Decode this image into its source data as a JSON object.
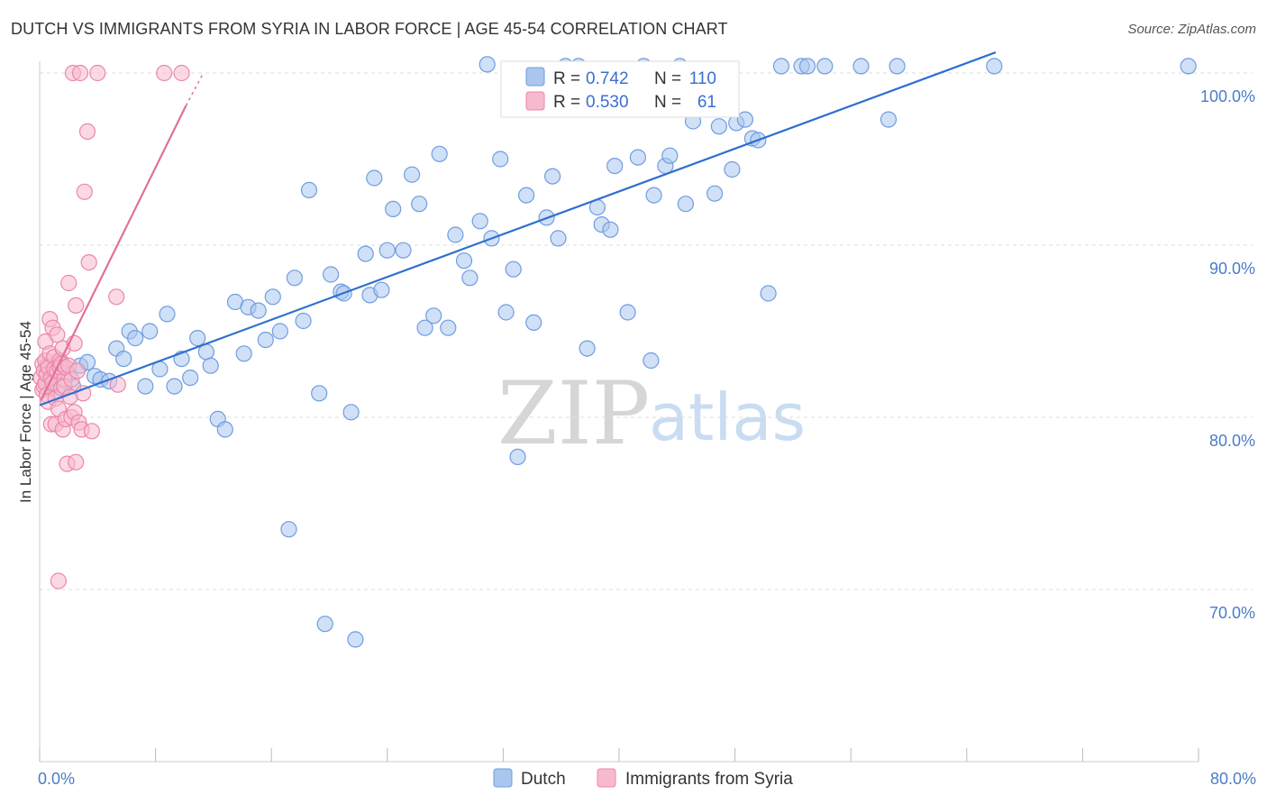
{
  "header": {
    "title": "DUTCH VS IMMIGRANTS FROM SYRIA IN LABOR FORCE | AGE 45-54 CORRELATION CHART",
    "source": "Source: ZipAtlas.com"
  },
  "watermark": {
    "zip": "ZIP",
    "atlas": "atlas"
  },
  "colors": {
    "dutch_fill": "#a9c6ee",
    "dutch_stroke": "#6f9de0",
    "dutch_line": "#2e6fd0",
    "syria_fill": "#f7b9ce",
    "syria_stroke": "#ec86a8",
    "syria_line": "#e0709b",
    "grid": "#dddddd",
    "axis_text": "#4a7cc9"
  },
  "legend": {
    "rows": [
      {
        "r_label": "R =",
        "r_value": "0.742",
        "n_label": "N =",
        "n_value": "110"
      },
      {
        "r_label": "R =",
        "r_value": "0.530",
        "n_label": "N =",
        "n_value": "61"
      }
    ]
  },
  "chart_data": {
    "type": "scatter",
    "title": "DUTCH VS IMMIGRANTS FROM SYRIA IN LABOR FORCE | AGE 45-54 CORRELATION CHART",
    "xlabel": "",
    "ylabel": "In Labor Force | Age 45-54",
    "xlim": [
      0,
      80
    ],
    "ylim": [
      60,
      102
    ],
    "x_tick_labels": [
      "0.0%",
      "80.0%"
    ],
    "y_ticks": [
      70,
      80,
      90,
      100
    ],
    "y_tick_labels": [
      "70.0%",
      "80.0%",
      "90.0%",
      "100.0%"
    ],
    "grid": true,
    "legend_position": "top-center",
    "series": [
      {
        "name": "Dutch",
        "color": "#a9c6ee",
        "R": 0.742,
        "N": 110,
        "trend": [
          [
            0.0,
            80.7
          ],
          [
            66.0,
            101.2
          ]
        ],
        "points": [
          [
            0.5,
            83.0
          ],
          [
            0.8,
            81.8
          ],
          [
            1.0,
            82.5
          ],
          [
            1.2,
            81.5
          ],
          [
            1.5,
            83.2
          ],
          [
            1.8,
            82.9
          ],
          [
            2.0,
            82.5
          ],
          [
            2.3,
            81.8
          ],
          [
            2.8,
            83.0
          ],
          [
            3.3,
            83.2
          ],
          [
            3.8,
            82.4
          ],
          [
            4.2,
            82.2
          ],
          [
            4.8,
            82.1
          ],
          [
            5.3,
            84.0
          ],
          [
            5.8,
            83.4
          ],
          [
            6.2,
            85.0
          ],
          [
            6.6,
            84.6
          ],
          [
            7.3,
            81.8
          ],
          [
            7.6,
            85.0
          ],
          [
            8.3,
            82.8
          ],
          [
            8.8,
            86.0
          ],
          [
            9.3,
            81.8
          ],
          [
            9.8,
            83.4
          ],
          [
            10.4,
            82.3
          ],
          [
            10.9,
            84.6
          ],
          [
            11.5,
            83.8
          ],
          [
            11.8,
            83.0
          ],
          [
            12.3,
            79.9
          ],
          [
            12.8,
            79.3
          ],
          [
            13.5,
            86.7
          ],
          [
            14.1,
            83.7
          ],
          [
            14.4,
            86.4
          ],
          [
            15.1,
            86.2
          ],
          [
            15.6,
            84.5
          ],
          [
            16.1,
            87.0
          ],
          [
            16.6,
            85.0
          ],
          [
            17.2,
            73.5
          ],
          [
            17.6,
            88.1
          ],
          [
            18.2,
            85.6
          ],
          [
            18.6,
            93.2
          ],
          [
            19.3,
            81.4
          ],
          [
            19.7,
            68.0
          ],
          [
            20.1,
            88.3
          ],
          [
            20.8,
            87.3
          ],
          [
            21.0,
            87.2
          ],
          [
            21.5,
            80.3
          ],
          [
            21.8,
            67.1
          ],
          [
            22.5,
            89.5
          ],
          [
            22.8,
            87.1
          ],
          [
            23.1,
            93.9
          ],
          [
            23.6,
            87.4
          ],
          [
            24.0,
            89.7
          ],
          [
            24.4,
            92.1
          ],
          [
            25.1,
            89.7
          ],
          [
            25.7,
            94.1
          ],
          [
            26.2,
            92.4
          ],
          [
            26.6,
            85.2
          ],
          [
            27.2,
            85.9
          ],
          [
            27.6,
            95.3
          ],
          [
            28.2,
            85.2
          ],
          [
            28.7,
            90.6
          ],
          [
            29.3,
            89.1
          ],
          [
            29.7,
            88.1
          ],
          [
            30.4,
            91.4
          ],
          [
            30.9,
            100.5
          ],
          [
            31.2,
            90.4
          ],
          [
            31.8,
            95.0
          ],
          [
            32.2,
            86.1
          ],
          [
            32.7,
            88.6
          ],
          [
            33.0,
            77.7
          ],
          [
            33.6,
            92.9
          ],
          [
            34.1,
            85.5
          ],
          [
            34.6,
            98.6
          ],
          [
            35.0,
            91.6
          ],
          [
            35.4,
            94.0
          ],
          [
            35.8,
            90.4
          ],
          [
            36.3,
            100.4
          ],
          [
            37.2,
            100.4
          ],
          [
            37.8,
            84.0
          ],
          [
            38.5,
            92.2
          ],
          [
            38.8,
            91.2
          ],
          [
            39.4,
            90.9
          ],
          [
            39.7,
            94.6
          ],
          [
            40.6,
            86.1
          ],
          [
            41.3,
            95.1
          ],
          [
            41.7,
            100.4
          ],
          [
            42.2,
            83.3
          ],
          [
            42.4,
            92.9
          ],
          [
            43.2,
            94.6
          ],
          [
            43.5,
            95.2
          ],
          [
            44.2,
            100.4
          ],
          [
            44.6,
            92.4
          ],
          [
            45.1,
            97.2
          ],
          [
            45.6,
            99.5
          ],
          [
            46.6,
            93.0
          ],
          [
            46.9,
            96.9
          ],
          [
            47.8,
            94.4
          ],
          [
            48.1,
            97.1
          ],
          [
            48.7,
            97.3
          ],
          [
            49.2,
            96.2
          ],
          [
            49.6,
            96.1
          ],
          [
            50.3,
            87.2
          ],
          [
            51.2,
            100.4
          ],
          [
            52.6,
            100.4
          ],
          [
            53.0,
            100.4
          ],
          [
            54.2,
            100.4
          ],
          [
            56.7,
            100.4
          ],
          [
            58.6,
            97.3
          ],
          [
            59.2,
            100.4
          ],
          [
            65.9,
            100.4
          ],
          [
            79.3,
            100.4
          ]
        ]
      },
      {
        "name": "Immigrants from Syria",
        "color": "#f7b9ce",
        "R": 0.53,
        "N": 61,
        "trend": [
          [
            0.1,
            81.0
          ],
          [
            10.1,
            98.1
          ]
        ],
        "trend_ext": [
          [
            10.1,
            98.1
          ],
          [
            11.3,
            100.0
          ]
        ],
        "points": [
          [
            0.1,
            82.3
          ],
          [
            0.2,
            81.6
          ],
          [
            0.2,
            83.1
          ],
          [
            0.3,
            82.7
          ],
          [
            0.3,
            81.8
          ],
          [
            0.4,
            82.0
          ],
          [
            0.4,
            83.3
          ],
          [
            0.4,
            84.4
          ],
          [
            0.5,
            82.5
          ],
          [
            0.5,
            81.3
          ],
          [
            0.6,
            82.9
          ],
          [
            0.6,
            80.9
          ],
          [
            0.7,
            85.7
          ],
          [
            0.7,
            83.7
          ],
          [
            0.8,
            82.3
          ],
          [
            0.8,
            79.6
          ],
          [
            0.9,
            82.0
          ],
          [
            0.9,
            85.2
          ],
          [
            1.0,
            83.5
          ],
          [
            1.0,
            82.8
          ],
          [
            1.1,
            81.1
          ],
          [
            1.1,
            79.6
          ],
          [
            1.2,
            84.8
          ],
          [
            1.2,
            82.7
          ],
          [
            1.3,
            80.5
          ],
          [
            1.3,
            70.5
          ],
          [
            1.4,
            83.3
          ],
          [
            1.4,
            82.9
          ],
          [
            1.5,
            83.1
          ],
          [
            1.5,
            81.7
          ],
          [
            1.6,
            79.3
          ],
          [
            1.6,
            84.0
          ],
          [
            1.7,
            82.2
          ],
          [
            1.7,
            81.8
          ],
          [
            1.8,
            82.9
          ],
          [
            1.8,
            79.9
          ],
          [
            1.9,
            77.3
          ],
          [
            2.0,
            87.8
          ],
          [
            2.0,
            83.0
          ],
          [
            2.1,
            81.2
          ],
          [
            2.2,
            82.2
          ],
          [
            2.2,
            80.0
          ],
          [
            2.3,
            100.0
          ],
          [
            2.4,
            84.3
          ],
          [
            2.4,
            80.3
          ],
          [
            2.5,
            86.5
          ],
          [
            2.5,
            77.4
          ],
          [
            2.6,
            82.7
          ],
          [
            2.7,
            79.7
          ],
          [
            2.8,
            100.0
          ],
          [
            2.9,
            79.3
          ],
          [
            3.0,
            81.4
          ],
          [
            3.1,
            93.1
          ],
          [
            3.3,
            96.6
          ],
          [
            3.4,
            89.0
          ],
          [
            3.6,
            79.2
          ],
          [
            4.0,
            100.0
          ],
          [
            5.3,
            87.0
          ],
          [
            5.4,
            81.9
          ],
          [
            8.6,
            100.0
          ],
          [
            9.8,
            100.0
          ]
        ]
      }
    ]
  },
  "bottom_legend": {
    "items": [
      {
        "label": "Dutch"
      },
      {
        "label": "Immigrants from Syria"
      }
    ]
  }
}
